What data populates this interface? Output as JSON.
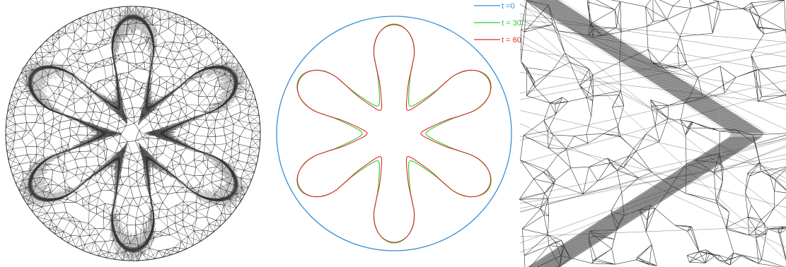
{
  "colors": {
    "mesh_line": "#333333",
    "circle_blue": "#3a8fd0",
    "green": "#2ecc2e",
    "red": "#dd2a2a",
    "background": "#ffffff"
  },
  "chart_data": {
    "type": "line",
    "legend_placement": "top-right",
    "grid": false,
    "series": [
      {
        "name": "t =0",
        "color": "#3a8fd0"
      },
      {
        "name": "t = 30",
        "color": "#2ecc2e"
      },
      {
        "name": "t = 60",
        "color": "#dd2a2a"
      }
    ]
  },
  "shapes": {
    "petal_count": 6
  }
}
